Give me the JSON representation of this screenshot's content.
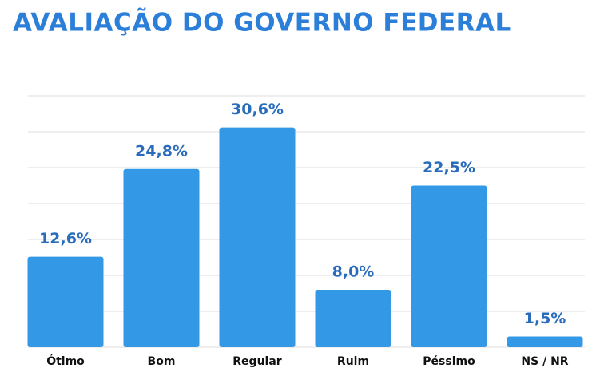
{
  "chart_data": {
    "type": "bar",
    "title": "AVALIAÇÃO DO GOVERNO FEDERAL",
    "categories": [
      "Ótimo",
      "Bom",
      "Regular",
      "Ruim",
      "Péssimo",
      "NS / NR"
    ],
    "values": [
      12.6,
      24.8,
      30.6,
      8.0,
      22.5,
      1.5
    ],
    "value_labels": [
      "12,6%",
      "24,8%",
      "30,6%",
      "8,0%",
      "22,5%",
      "1,5%"
    ],
    "color": "#3398e6",
    "ylim": [
      0,
      35
    ],
    "yticks": [
      0,
      5,
      10,
      15,
      20,
      25,
      30,
      35
    ],
    "grid": true
  }
}
